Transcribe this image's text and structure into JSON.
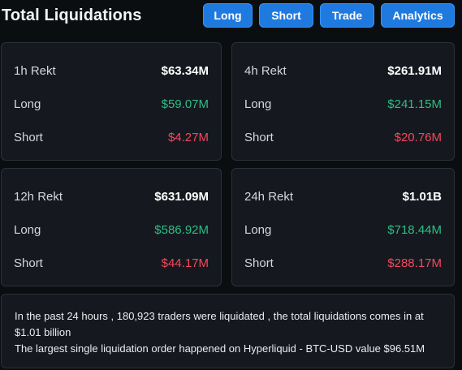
{
  "header": {
    "title": "Total Liquidations",
    "tabs": [
      {
        "label": "Long"
      },
      {
        "label": "Short"
      },
      {
        "label": "Trade"
      },
      {
        "label": "Analytics"
      }
    ]
  },
  "cards": {
    "h1": {
      "title": "1h Rekt",
      "total": "$63.34M",
      "long_label": "Long",
      "long_value": "$59.07M",
      "short_label": "Short",
      "short_value": "$4.27M"
    },
    "h4": {
      "title": "4h Rekt",
      "total": "$261.91M",
      "long_label": "Long",
      "long_value": "$241.15M",
      "short_label": "Short",
      "short_value": "$20.76M"
    },
    "h12": {
      "title": "12h Rekt",
      "total": "$631.09M",
      "long_label": "Long",
      "long_value": "$586.92M",
      "short_label": "Short",
      "short_value": "$44.17M"
    },
    "h24": {
      "title": "24h Rekt",
      "total": "$1.01B",
      "long_label": "Long",
      "long_value": "$718.44M",
      "short_label": "Short",
      "short_value": "$288.17M"
    }
  },
  "summary": {
    "line1": "In the past 24 hours , 180,923 traders were liquidated , the total liquidations comes in at $1.01 billion",
    "line2": "The largest single liquidation order happened on Hyperliquid - BTC-USD value $96.51M"
  },
  "colors": {
    "accent": "#1f7ae0",
    "long": "#2ebd85",
    "short": "#f6465d",
    "background": "#0b0e11",
    "card": "#15191f"
  }
}
